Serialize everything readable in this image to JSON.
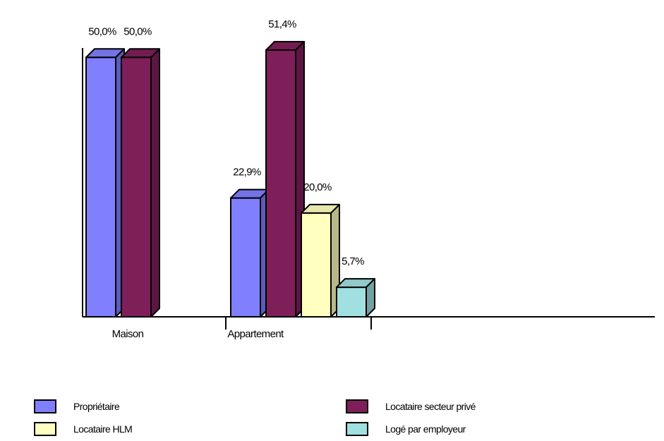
{
  "chart_data": {
    "type": "bar",
    "categories": [
      "Maison",
      "Appartement"
    ],
    "series": [
      {
        "name": "Propriétaire",
        "color": "#8080ff",
        "values": [
          50.0,
          22.9
        ],
        "labels": [
          "50,0%",
          "22,9%"
        ]
      },
      {
        "name": "Locataire secteur privé",
        "color": "#7f1f5a",
        "values": [
          50.0,
          51.4
        ],
        "labels": [
          "50,0%",
          "51,4%"
        ]
      },
      {
        "name": "Locataire HLM",
        "color": "#ffffc0",
        "values": [
          null,
          20.0
        ],
        "labels": [
          "",
          "20,0%"
        ]
      },
      {
        "name": "Logé par employeur",
        "color": "#a0e0e0",
        "values": [
          null,
          5.7
        ],
        "labels": [
          "",
          "5,7%"
        ]
      }
    ],
    "ylim": [
      0,
      51.4
    ],
    "grid": false,
    "legend": "bottom",
    "title": "",
    "xlabel": "",
    "ylabel": ""
  }
}
